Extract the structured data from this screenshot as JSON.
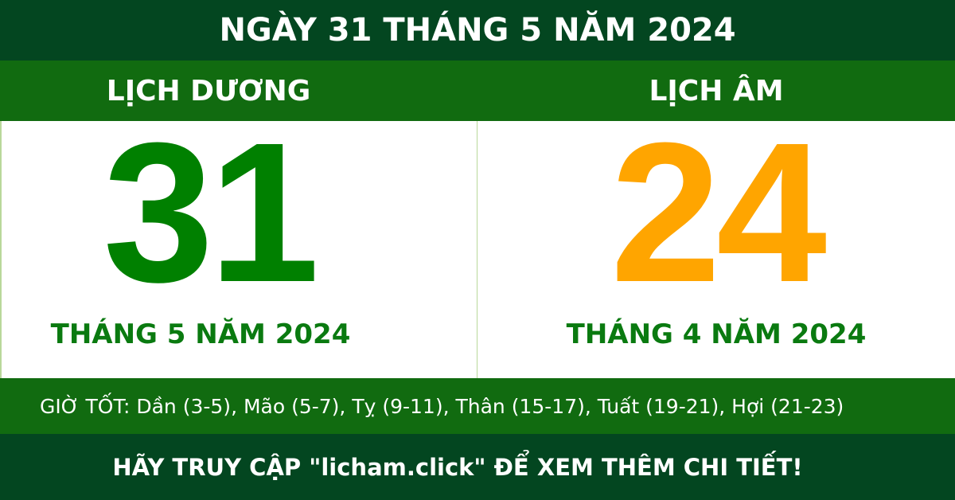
{
  "title": "NGÀY 31 THÁNG 5 NĂM 2024",
  "solar": {
    "label": "LỊCH DƯƠNG",
    "day": "31",
    "month_year": "THÁNG 5 NĂM 2024"
  },
  "lunar": {
    "label": "LỊCH ÂM",
    "day": "24",
    "month_year": "THÁNG 4 NĂM 2024"
  },
  "good_hours": "GIỜ TỐT: Dần (3-5), Mão (5-7), Tỵ (9-11), Thân (15-17), Tuất (19-21), Hợi (21-23)",
  "footer": "HÃY TRUY CẬP \"licham.click\" ĐỂ XEM THÊM CHI TIẾT!",
  "colors": {
    "dark_green": "#034620",
    "green": "#116b10",
    "solar_day": "#008000",
    "lunar_day": "#ffa500"
  }
}
